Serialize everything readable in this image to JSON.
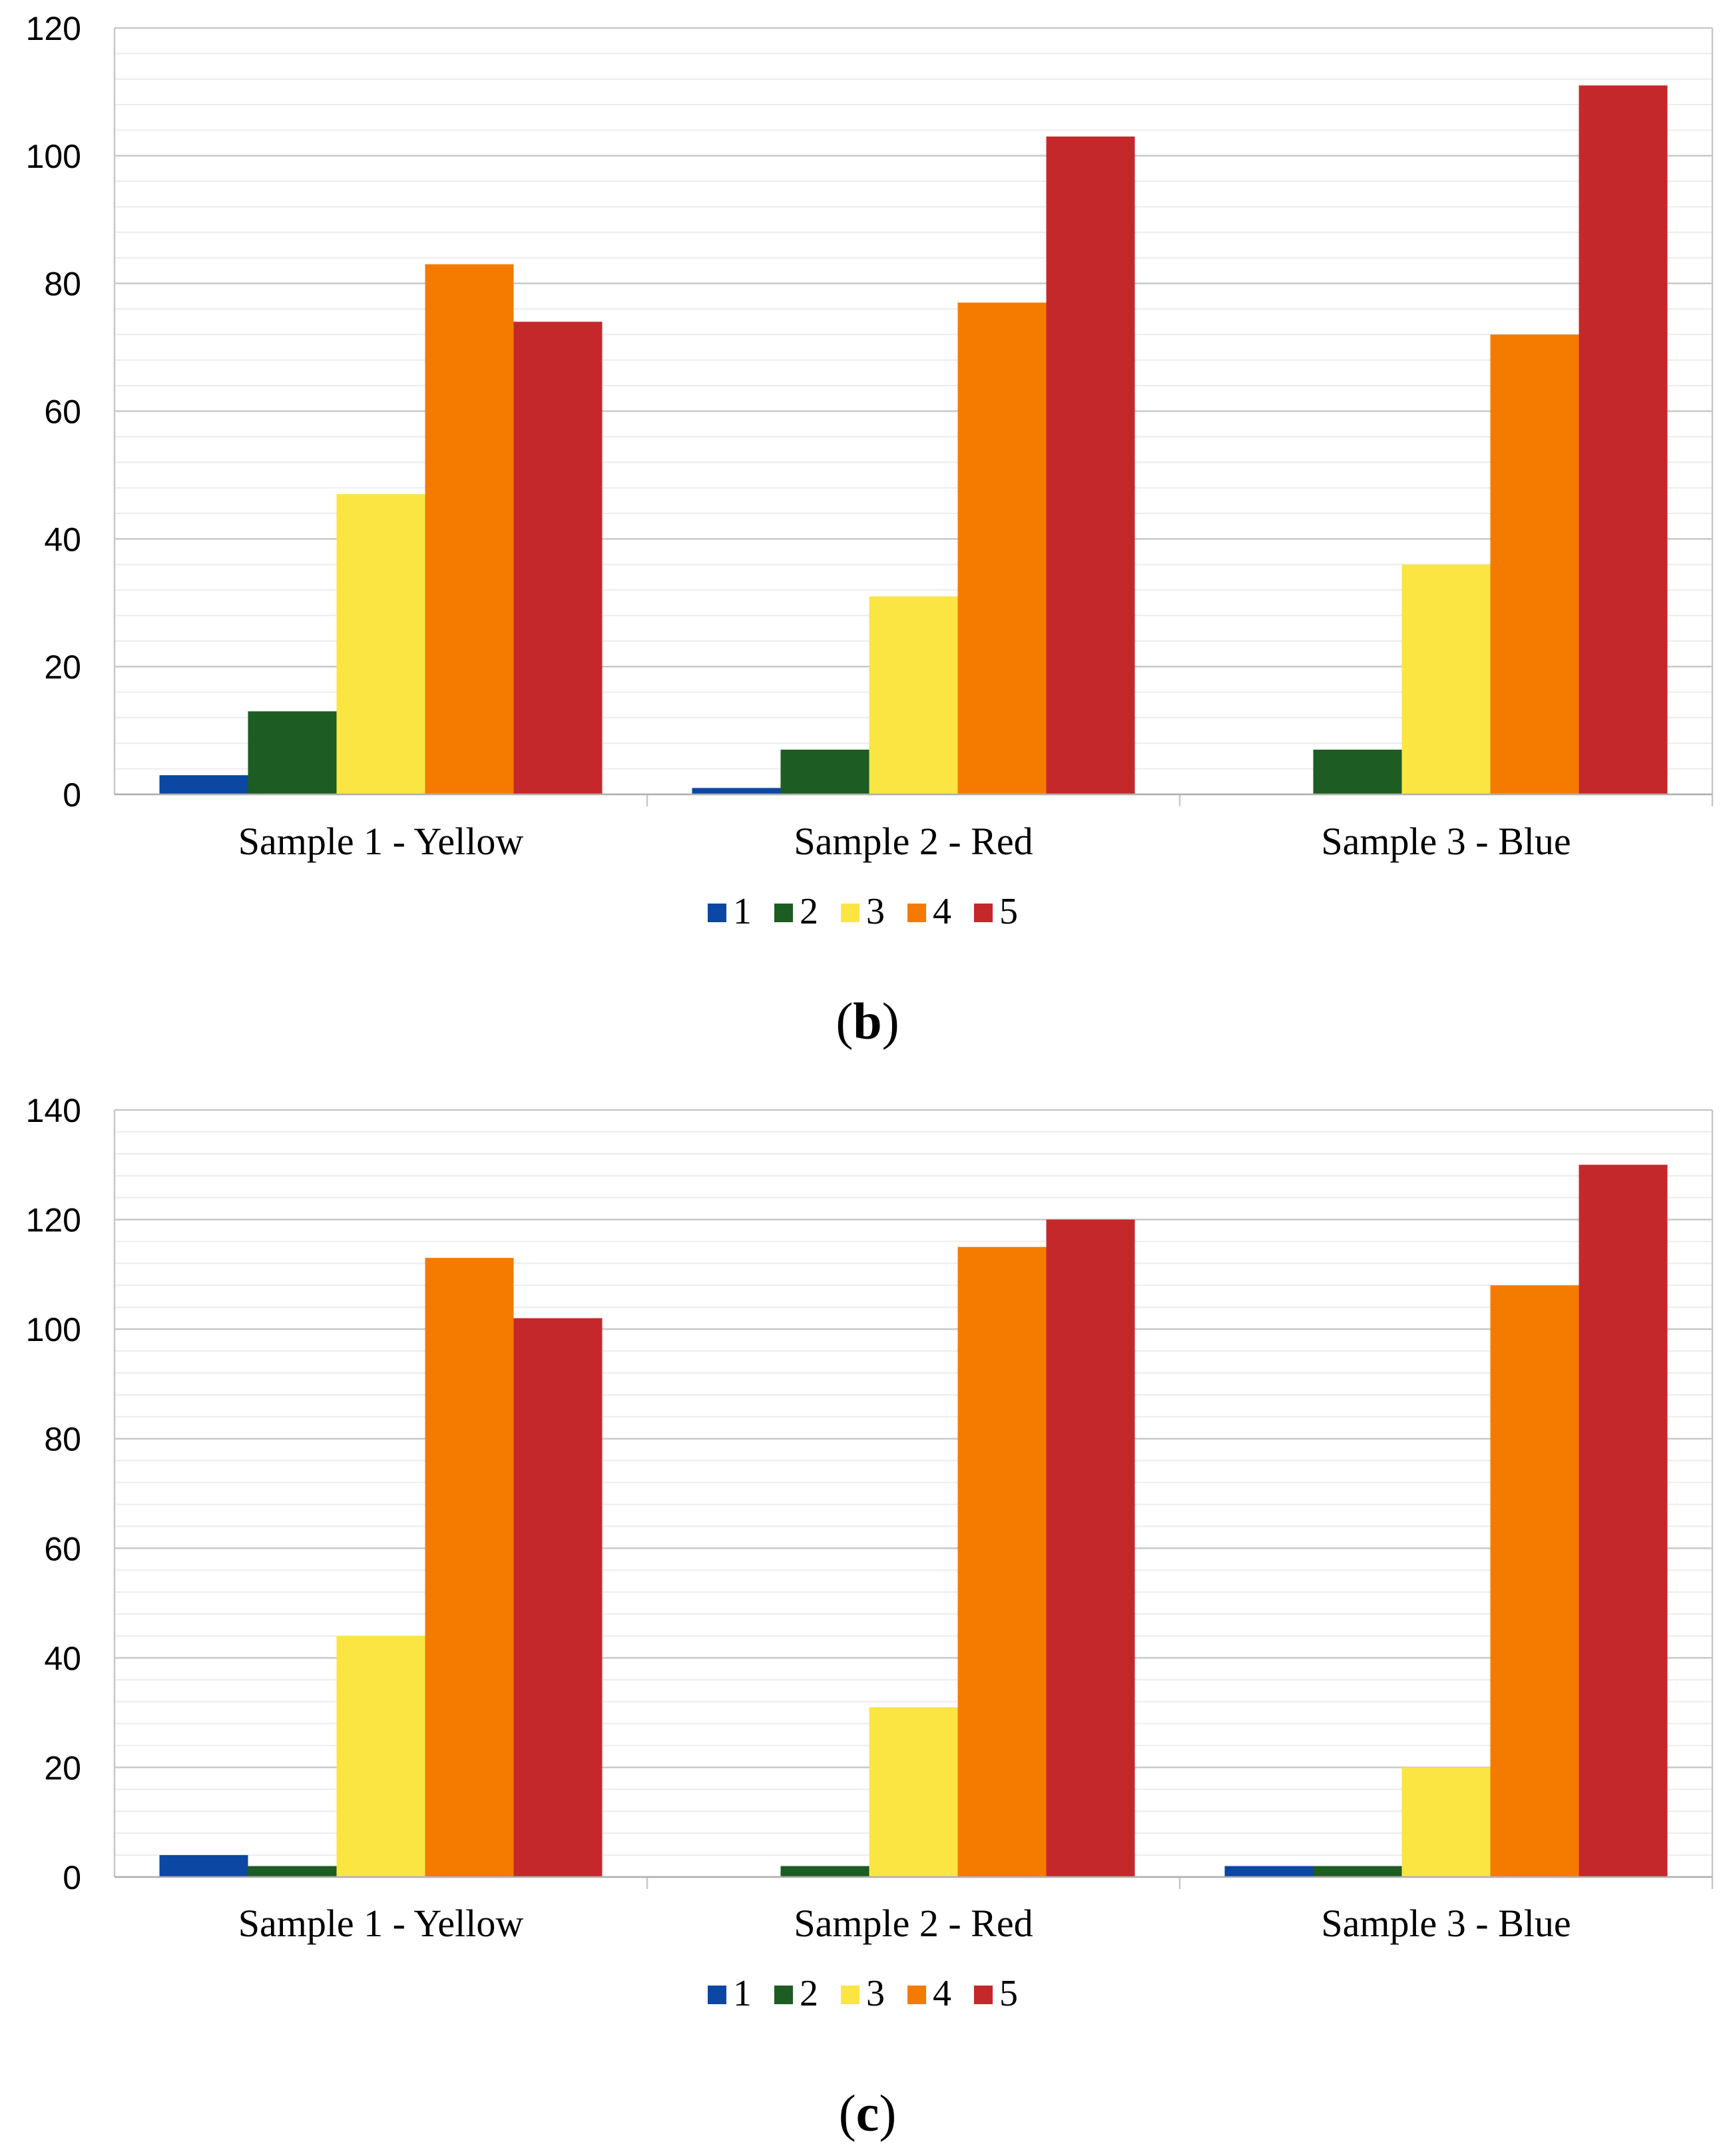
{
  "series_colors": [
    "#0b47a3",
    "#1d5c22",
    "#fbe543",
    "#f57b00",
    "#c5282a"
  ],
  "chart_data": [
    {
      "type": "bar",
      "panel_label": "b",
      "categories": [
        "Sample 1 - Yellow",
        "Sample 2 - Red",
        "Sample 3 - Blue"
      ],
      "series": [
        {
          "name": "1",
          "values": [
            3,
            1,
            0
          ]
        },
        {
          "name": "2",
          "values": [
            13,
            7,
            7
          ]
        },
        {
          "name": "3",
          "values": [
            47,
            31,
            36
          ]
        },
        {
          "name": "4",
          "values": [
            83,
            77,
            72
          ]
        },
        {
          "name": "5",
          "values": [
            74,
            103,
            111
          ]
        }
      ],
      "ylim": [
        0,
        120
      ],
      "yticks": [
        "0",
        "20",
        "40",
        "60",
        "80",
        "100",
        "120"
      ],
      "grid": true,
      "legend": "bottom-center",
      "title": "",
      "xlabel": "",
      "ylabel": ""
    },
    {
      "type": "bar",
      "panel_label": "c",
      "categories": [
        "Sample 1 - Yellow",
        "Sample 2 - Red",
        "Sample 3 - Blue"
      ],
      "series": [
        {
          "name": "1",
          "values": [
            4,
            0,
            2
          ]
        },
        {
          "name": "2",
          "values": [
            2,
            2,
            2
          ]
        },
        {
          "name": "3",
          "values": [
            44,
            31,
            20
          ]
        },
        {
          "name": "4",
          "values": [
            113,
            115,
            108
          ]
        },
        {
          "name": "5",
          "values": [
            102,
            120,
            130
          ]
        }
      ],
      "ylim": [
        0,
        140
      ],
      "yticks": [
        "0",
        "20",
        "40",
        "60",
        "80",
        "100",
        "120",
        "140"
      ],
      "grid": true,
      "legend": "bottom-center",
      "title": "",
      "xlabel": "",
      "ylabel": ""
    }
  ],
  "captions": [
    {
      "open": "(",
      "letter": "b",
      "close": ")"
    },
    {
      "open": "(",
      "letter": "c",
      "close": ")"
    }
  ]
}
